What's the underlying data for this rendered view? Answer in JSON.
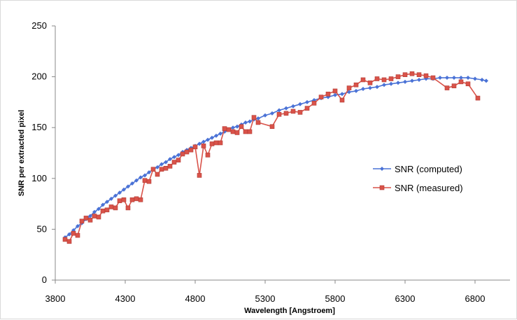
{
  "chart_data": {
    "type": "line",
    "title": "",
    "xlabel": "Wavelength [Angstroem]",
    "ylabel": "SNR per extracted pixel",
    "xlim": [
      3800,
      7050
    ],
    "ylim": [
      0,
      250
    ],
    "x_ticks": [
      3800,
      4300,
      4800,
      5300,
      5800,
      6300,
      6800
    ],
    "y_ticks": [
      0,
      50,
      100,
      150,
      200,
      250
    ],
    "grid": false,
    "legend_position": "right",
    "series": [
      {
        "name": "SNR (computed)",
        "color": "#4a72d6",
        "marker": "diamond",
        "points": [
          [
            3870,
            42
          ],
          [
            3900,
            45
          ],
          [
            3930,
            49
          ],
          [
            3960,
            53
          ],
          [
            3990,
            56
          ],
          [
            4020,
            60
          ],
          [
            4050,
            63
          ],
          [
            4080,
            67
          ],
          [
            4110,
            70
          ],
          [
            4140,
            74
          ],
          [
            4170,
            77
          ],
          [
            4200,
            80
          ],
          [
            4230,
            83
          ],
          [
            4260,
            86
          ],
          [
            4290,
            89
          ],
          [
            4320,
            92
          ],
          [
            4350,
            95
          ],
          [
            4380,
            98
          ],
          [
            4410,
            101
          ],
          [
            4440,
            103
          ],
          [
            4470,
            106
          ],
          [
            4500,
            109
          ],
          [
            4530,
            111
          ],
          [
            4560,
            114
          ],
          [
            4590,
            116
          ],
          [
            4620,
            119
          ],
          [
            4650,
            121
          ],
          [
            4680,
            123
          ],
          [
            4710,
            126
          ],
          [
            4740,
            128
          ],
          [
            4770,
            130
          ],
          [
            4800,
            132
          ],
          [
            4830,
            134
          ],
          [
            4860,
            136
          ],
          [
            4890,
            138
          ],
          [
            4920,
            140
          ],
          [
            4950,
            142
          ],
          [
            4980,
            144
          ],
          [
            5010,
            146
          ],
          [
            5040,
            148
          ],
          [
            5070,
            150
          ],
          [
            5100,
            151
          ],
          [
            5130,
            153
          ],
          [
            5160,
            155
          ],
          [
            5190,
            156
          ],
          [
            5220,
            158
          ],
          [
            5250,
            159
          ],
          [
            5300,
            162
          ],
          [
            5350,
            164
          ],
          [
            5400,
            167
          ],
          [
            5450,
            169
          ],
          [
            5500,
            171
          ],
          [
            5550,
            173
          ],
          [
            5600,
            175
          ],
          [
            5650,
            177
          ],
          [
            5700,
            179
          ],
          [
            5750,
            180
          ],
          [
            5800,
            182
          ],
          [
            5850,
            183
          ],
          [
            5900,
            185
          ],
          [
            5950,
            186
          ],
          [
            6000,
            188
          ],
          [
            6050,
            189
          ],
          [
            6100,
            190
          ],
          [
            6150,
            192
          ],
          [
            6200,
            193
          ],
          [
            6250,
            194
          ],
          [
            6300,
            195
          ],
          [
            6350,
            196
          ],
          [
            6400,
            197
          ],
          [
            6450,
            198
          ],
          [
            6500,
            198
          ],
          [
            6550,
            199
          ],
          [
            6600,
            199
          ],
          [
            6650,
            199
          ],
          [
            6700,
            199
          ],
          [
            6750,
            199
          ],
          [
            6800,
            198
          ],
          [
            6850,
            197
          ],
          [
            6880,
            196
          ]
        ]
      },
      {
        "name": "SNR (measured)",
        "color": "#d9534a",
        "marker": "square",
        "points": [
          [
            3870,
            40
          ],
          [
            3900,
            38
          ],
          [
            3930,
            46
          ],
          [
            3960,
            44
          ],
          [
            3990,
            58
          ],
          [
            4020,
            61
          ],
          [
            4050,
            59
          ],
          [
            4080,
            63
          ],
          [
            4110,
            62
          ],
          [
            4140,
            68
          ],
          [
            4170,
            69
          ],
          [
            4200,
            72
          ],
          [
            4230,
            71
          ],
          [
            4260,
            78
          ],
          [
            4290,
            79
          ],
          [
            4320,
            71
          ],
          [
            4350,
            79
          ],
          [
            4380,
            80
          ],
          [
            4410,
            79
          ],
          [
            4440,
            98
          ],
          [
            4470,
            97
          ],
          [
            4500,
            109
          ],
          [
            4530,
            104
          ],
          [
            4560,
            109
          ],
          [
            4590,
            110
          ],
          [
            4620,
            112
          ],
          [
            4650,
            116
          ],
          [
            4680,
            118
          ],
          [
            4710,
            124
          ],
          [
            4740,
            126
          ],
          [
            4770,
            128
          ],
          [
            4800,
            131
          ],
          [
            4830,
            103
          ],
          [
            4860,
            132
          ],
          [
            4890,
            123
          ],
          [
            4920,
            134
          ],
          [
            4950,
            135
          ],
          [
            4980,
            135
          ],
          [
            5010,
            149
          ],
          [
            5040,
            148
          ],
          [
            5070,
            146
          ],
          [
            5100,
            145
          ],
          [
            5130,
            151
          ],
          [
            5160,
            146
          ],
          [
            5190,
            146
          ],
          [
            5220,
            160
          ],
          [
            5250,
            155
          ],
          [
            5350,
            151
          ],
          [
            5400,
            163
          ],
          [
            5450,
            164
          ],
          [
            5500,
            166
          ],
          [
            5550,
            165
          ],
          [
            5600,
            169
          ],
          [
            5650,
            174
          ],
          [
            5700,
            180
          ],
          [
            5750,
            183
          ],
          [
            5800,
            186
          ],
          [
            5850,
            177
          ],
          [
            5900,
            189
          ],
          [
            5950,
            192
          ],
          [
            6000,
            197
          ],
          [
            6050,
            194
          ],
          [
            6100,
            198
          ],
          [
            6150,
            197
          ],
          [
            6200,
            198
          ],
          [
            6250,
            200
          ],
          [
            6300,
            202
          ],
          [
            6350,
            203
          ],
          [
            6400,
            202
          ],
          [
            6450,
            201
          ],
          [
            6500,
            199
          ],
          [
            6600,
            189
          ],
          [
            6650,
            191
          ],
          [
            6700,
            195
          ],
          [
            6750,
            193
          ],
          [
            6820,
            179
          ]
        ]
      }
    ]
  }
}
